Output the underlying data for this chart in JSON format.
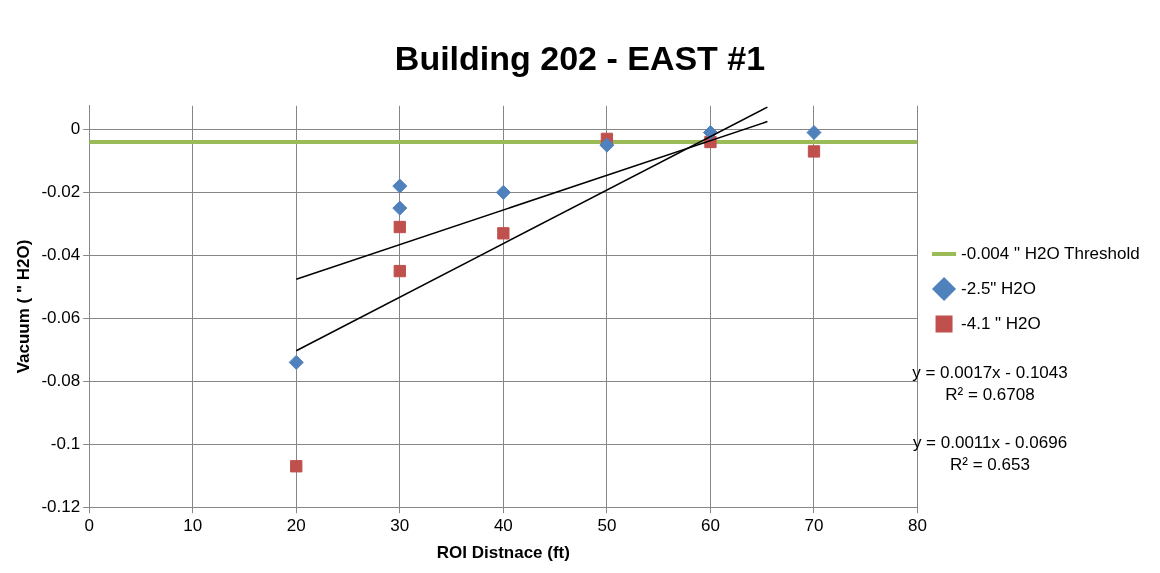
{
  "chart_data": {
    "type": "scatter",
    "title": "Building 202 - EAST #1",
    "xlabel": "ROI Distnace (ft)",
    "ylabel": "Vacuum ( \" H2O)",
    "xlim": [
      0,
      80
    ],
    "xticks": [
      0,
      10,
      20,
      30,
      40,
      50,
      60,
      70,
      80
    ],
    "ylim": [
      -0.12,
      0.0075
    ],
    "yticks": [
      -0.12,
      -0.1,
      -0.08,
      -0.06,
      -0.04,
      -0.02,
      0
    ],
    "grid": true,
    "legend": "right",
    "ref_lines": [
      {
        "axis": "y",
        "value": -0.004,
        "label": "-0.004 \" H2O Threshold",
        "color": "#9bbb59"
      }
    ],
    "series": [
      {
        "name": "-2.5\" H2O",
        "color": "#4f81bd",
        "marker": "diamond",
        "x": [
          20,
          30,
          30,
          40,
          50,
          60,
          70
        ],
        "values": [
          -0.074,
          -0.018,
          -0.025,
          -0.02,
          -0.005,
          -0.001,
          -0.001
        ]
      },
      {
        "name": "-4.1 \" H2O",
        "color": "#c0504d",
        "marker": "square",
        "x": [
          20,
          30,
          30,
          40,
          50,
          60,
          70
        ],
        "values": [
          -0.107,
          -0.031,
          -0.045,
          -0.033,
          -0.003,
          -0.004,
          -0.007
        ]
      },
      {
        "type": "line",
        "color": "#000000",
        "marker": "none",
        "x": [
          20,
          65.5
        ],
        "values": [
          -0.0703,
          0.0071
        ]
      },
      {
        "type": "line",
        "color": "#000000",
        "marker": "none",
        "x": [
          20,
          65.5
        ],
        "values": [
          -0.0476,
          0.0025
        ]
      }
    ],
    "annotations": [
      "y = 0.0017x - 0.1043\nR² = 0.6708",
      "y = 0.0011x - 0.0696\nR² = 0.653"
    ]
  }
}
